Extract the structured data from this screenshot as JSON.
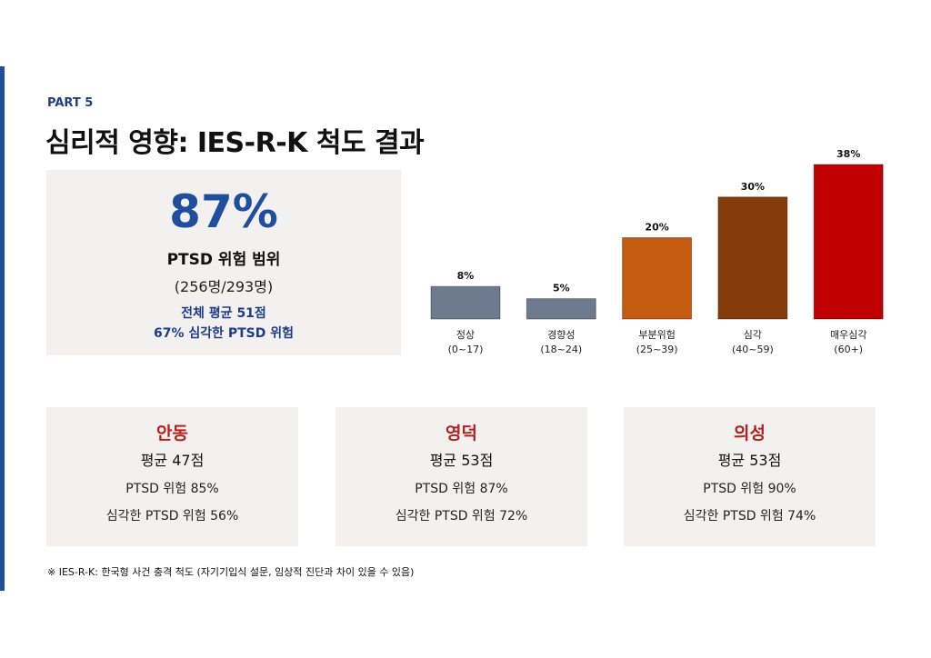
{
  "header": {
    "part": "PART 5",
    "title": "심리적 영향: IES-R-K 척도 결과"
  },
  "summary": {
    "percent": "87%",
    "label": "PTSD 위험 범위",
    "count": "(256명/293명)",
    "avg": "전체 평균 51점",
    "severe": "67% 심각한 PTSD 위험"
  },
  "chart_data": {
    "type": "bar",
    "categories": [
      "정상",
      "경향성",
      "부분위험",
      "심각",
      "매우심각"
    ],
    "ranges": [
      "(0~17)",
      "(18~24)",
      "(25~39)",
      "(40~59)",
      "(60+)"
    ],
    "values": [
      8,
      5,
      20,
      30,
      38
    ],
    "value_labels": [
      "8%",
      "5%",
      "20%",
      "30%",
      "38%"
    ],
    "colors": [
      "#6e7b8e",
      "#6e7b8e",
      "#c55a11",
      "#843c0c",
      "#c00000"
    ],
    "grid": false
  },
  "regions": [
    {
      "name": "안동",
      "avg": "평균 47점",
      "risk": "PTSD 위험 85%",
      "severe": "심각한 PTSD 위험 56%"
    },
    {
      "name": "영덕",
      "avg": "평균 53점",
      "risk": "PTSD 위험 87%",
      "severe": "심각한 PTSD 위험 72%"
    },
    {
      "name": "의성",
      "avg": "평균 53점",
      "risk": "PTSD 위험 90%",
      "severe": "심각한 PTSD 위험 74%"
    }
  ],
  "footnote": "※ IES-R-K: 한국형 사건 충격 척도 (자기기입식 설문, 임상적 진단과 차이 있을 수 있음)"
}
